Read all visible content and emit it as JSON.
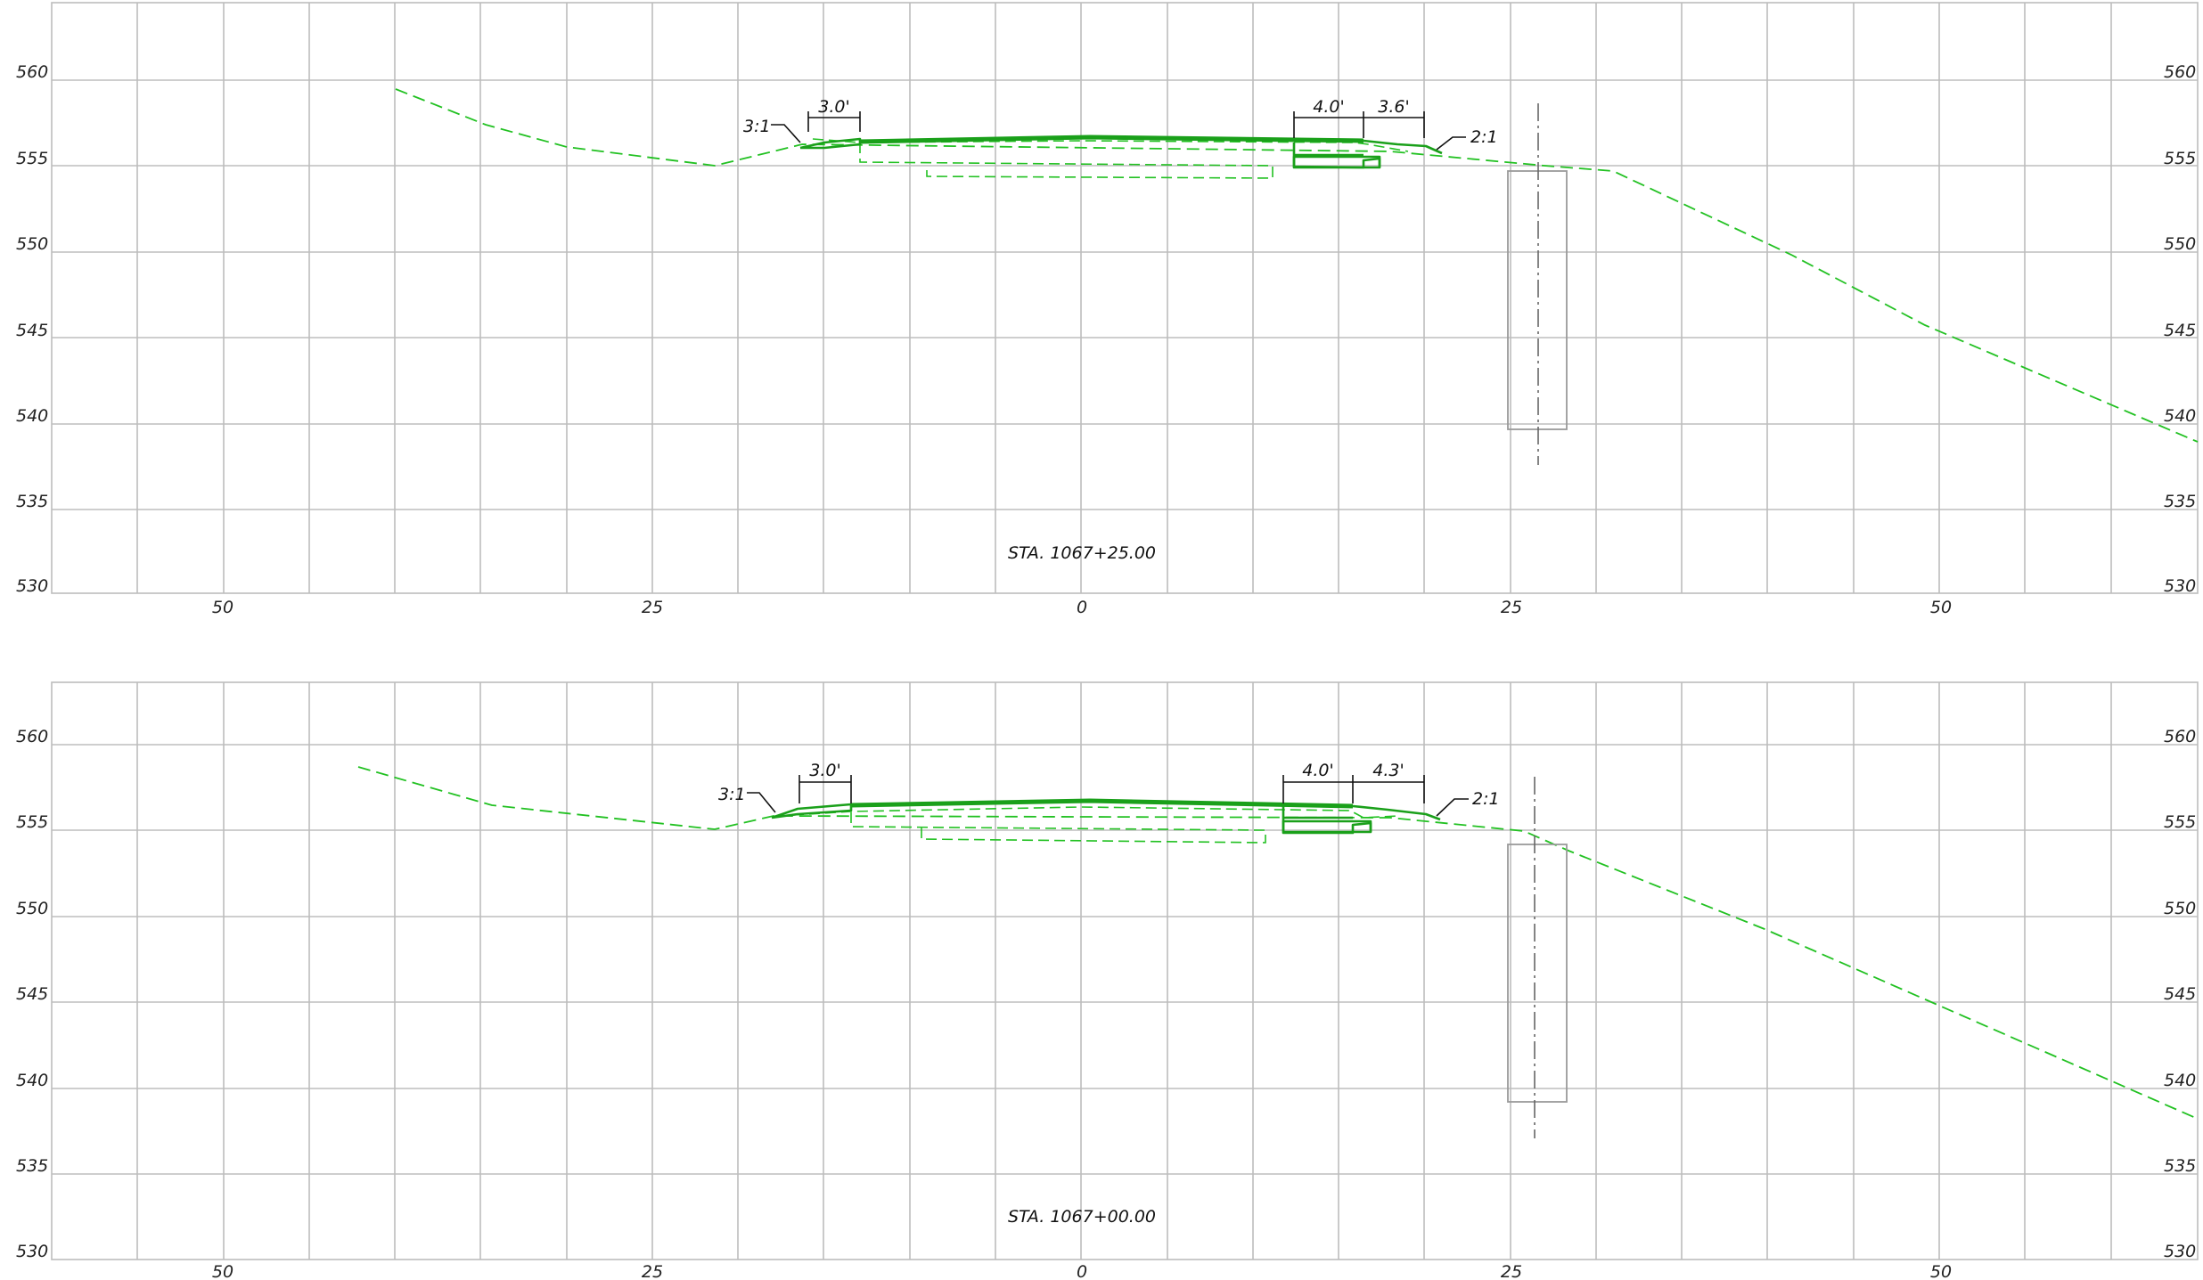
{
  "sheets": [
    {
      "station": "STA. 1067+25.00",
      "elev_labels": [
        "560",
        "555",
        "550",
        "545",
        "540",
        "535",
        "530"
      ],
      "offset_labels": [
        "50",
        "25",
        "0",
        "25",
        "50"
      ],
      "dims": [
        "3.0'",
        "4.0'",
        "3.6'"
      ],
      "slopes": [
        "3:1",
        "2:1"
      ]
    },
    {
      "station": "STA. 1067+00.00",
      "elev_labels": [
        "560",
        "555",
        "550",
        "545",
        "540",
        "535",
        "530"
      ],
      "offset_labels": [
        "50",
        "25",
        "0",
        "25",
        "50"
      ],
      "dims": [
        "3.0'",
        "4.0'",
        "4.3'"
      ],
      "slopes": [
        "3:1",
        "2:1"
      ]
    }
  ],
  "colors": {
    "grid": "#bdbdbd",
    "existing_ground": "#22c122",
    "proposed_section": "#1aa01a",
    "wall": "#9a9a9a"
  }
}
